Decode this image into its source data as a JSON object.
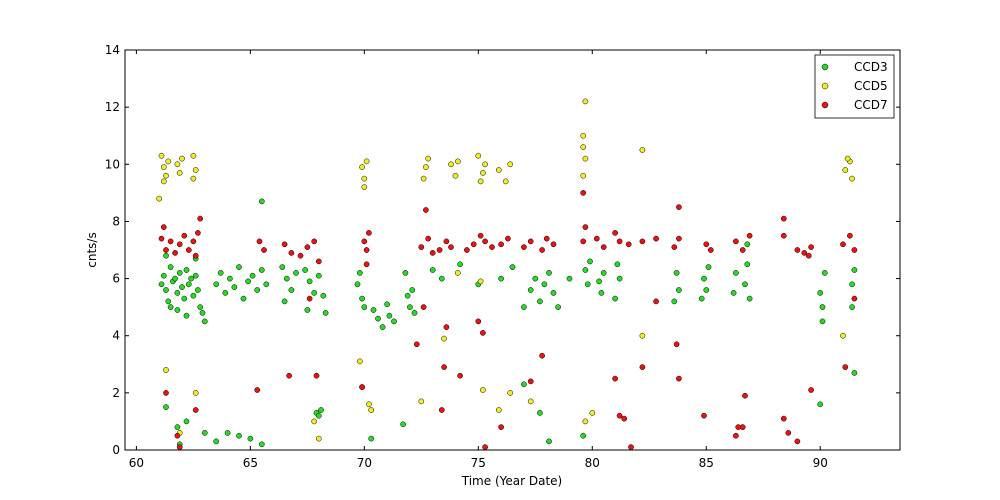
{
  "chart_data": {
    "type": "scatter",
    "xlabel": "Time (Year Date)",
    "ylabel": "cnts/s",
    "xlim": [
      59.5,
      93.5
    ],
    "ylim": [
      0,
      14
    ],
    "xticks": [
      60,
      65,
      70,
      75,
      80,
      85,
      90
    ],
    "yticks": [
      0,
      2,
      4,
      6,
      8,
      10,
      12,
      14
    ],
    "grid": false,
    "legend_position": "top-right",
    "series": [
      {
        "name": "CCD3",
        "color": "#22dd22",
        "points": [
          [
            61.1,
            5.8
          ],
          [
            61.2,
            6.1
          ],
          [
            61.3,
            5.6
          ],
          [
            61.4,
            5.2
          ],
          [
            61.5,
            6.4
          ],
          [
            61.6,
            5.9
          ],
          [
            61.7,
            6.0
          ],
          [
            61.8,
            5.5
          ],
          [
            61.9,
            6.2
          ],
          [
            62.0,
            5.7
          ],
          [
            62.1,
            5.3
          ],
          [
            62.2,
            6.3
          ],
          [
            62.3,
            5.8
          ],
          [
            62.4,
            6.0
          ],
          [
            62.5,
            5.4
          ],
          [
            62.6,
            6.1
          ],
          [
            62.7,
            5.6
          ],
          [
            62.8,
            5.0
          ],
          [
            62.9,
            4.8
          ],
          [
            63.0,
            4.5
          ],
          [
            61.5,
            5.0
          ],
          [
            61.8,
            4.9
          ],
          [
            62.2,
            4.7
          ],
          [
            61.3,
            6.8
          ],
          [
            62.6,
            6.7
          ],
          [
            63.5,
            5.8
          ],
          [
            63.7,
            6.2
          ],
          [
            63.9,
            5.5
          ],
          [
            64.1,
            6.0
          ],
          [
            64.3,
            5.7
          ],
          [
            64.5,
            6.4
          ],
          [
            64.7,
            5.3
          ],
          [
            64.9,
            5.9
          ],
          [
            65.1,
            6.1
          ],
          [
            65.3,
            5.6
          ],
          [
            65.5,
            6.3
          ],
          [
            65.7,
            5.8
          ],
          [
            65.5,
            8.7
          ],
          [
            66.4,
            6.4
          ],
          [
            66.6,
            6.0
          ],
          [
            66.8,
            5.6
          ],
          [
            67.0,
            6.2
          ],
          [
            66.5,
            5.2
          ],
          [
            67.4,
            6.3
          ],
          [
            67.6,
            5.9
          ],
          [
            67.8,
            5.5
          ],
          [
            68.0,
            6.1
          ],
          [
            68.2,
            5.4
          ],
          [
            68.3,
            4.8
          ],
          [
            67.5,
            4.9
          ],
          [
            69.7,
            5.8
          ],
          [
            69.9,
            5.3
          ],
          [
            69.8,
            6.2
          ],
          [
            70.0,
            5.0
          ],
          [
            70.4,
            4.9
          ],
          [
            70.6,
            4.6
          ],
          [
            70.8,
            4.3
          ],
          [
            71.0,
            5.1
          ],
          [
            71.1,
            4.7
          ],
          [
            71.3,
            4.5
          ],
          [
            71.9,
            5.4
          ],
          [
            72.0,
            5.0
          ],
          [
            72.1,
            5.6
          ],
          [
            72.2,
            4.8
          ],
          [
            71.8,
            6.2
          ],
          [
            73.0,
            6.3
          ],
          [
            73.4,
            6.0
          ],
          [
            74.2,
            6.5
          ],
          [
            75.0,
            5.8
          ],
          [
            76.0,
            6.0
          ],
          [
            76.5,
            6.4
          ],
          [
            77.3,
            5.6
          ],
          [
            77.5,
            6.0
          ],
          [
            77.7,
            5.2
          ],
          [
            77.9,
            5.8
          ],
          [
            78.1,
            6.2
          ],
          [
            78.3,
            5.5
          ],
          [
            78.5,
            5.0
          ],
          [
            77.0,
            5.0
          ],
          [
            79.0,
            6.0
          ],
          [
            79.7,
            6.3
          ],
          [
            79.8,
            5.8
          ],
          [
            79.9,
            6.6
          ],
          [
            80.3,
            5.9
          ],
          [
            80.5,
            6.2
          ],
          [
            80.4,
            5.5
          ],
          [
            81.1,
            6.5
          ],
          [
            81.2,
            6.0
          ],
          [
            81.0,
            5.3
          ],
          [
            83.7,
            6.2
          ],
          [
            83.8,
            5.6
          ],
          [
            83.6,
            5.2
          ],
          [
            84.9,
            6.0
          ],
          [
            85.0,
            5.6
          ],
          [
            85.1,
            6.4
          ],
          [
            84.8,
            5.3
          ],
          [
            86.3,
            6.2
          ],
          [
            86.2,
            5.5
          ],
          [
            86.7,
            5.8
          ],
          [
            86.8,
            6.5
          ],
          [
            86.9,
            5.3
          ],
          [
            86.8,
            7.2
          ],
          [
            90.0,
            5.5
          ],
          [
            90.1,
            5.0
          ],
          [
            90.2,
            6.2
          ],
          [
            90.1,
            4.5
          ],
          [
            91.4,
            5.8
          ],
          [
            91.5,
            6.3
          ],
          [
            91.4,
            5.0
          ],
          [
            91.5,
            2.7
          ],
          [
            61.3,
            1.5
          ],
          [
            61.8,
            0.8
          ],
          [
            61.9,
            0.2
          ],
          [
            62.2,
            1.0
          ],
          [
            63.0,
            0.6
          ],
          [
            63.5,
            0.3
          ],
          [
            64.0,
            0.6
          ],
          [
            64.5,
            0.5
          ],
          [
            65.0,
            0.4
          ],
          [
            65.5,
            0.2
          ],
          [
            67.9,
            1.3
          ],
          [
            68.0,
            1.2
          ],
          [
            68.1,
            1.4
          ],
          [
            70.3,
            0.4
          ],
          [
            71.7,
            0.9
          ],
          [
            77.0,
            2.3
          ],
          [
            77.7,
            1.3
          ],
          [
            78.1,
            0.3
          ],
          [
            79.6,
            0.5
          ],
          [
            90.0,
            1.6
          ]
        ]
      },
      {
        "name": "CCD5",
        "color": "#eeee22",
        "points": [
          [
            61.1,
            10.3
          ],
          [
            61.2,
            9.9
          ],
          [
            61.3,
            9.6
          ],
          [
            61.4,
            10.1
          ],
          [
            61.0,
            8.8
          ],
          [
            61.2,
            9.4
          ],
          [
            61.8,
            10.0
          ],
          [
            61.9,
            9.7
          ],
          [
            62.0,
            10.2
          ],
          [
            62.5,
            10.3
          ],
          [
            62.6,
            9.8
          ],
          [
            62.5,
            9.5
          ],
          [
            69.9,
            9.9
          ],
          [
            70.0,
            9.5
          ],
          [
            70.1,
            10.1
          ],
          [
            70.0,
            9.2
          ],
          [
            72.7,
            9.9
          ],
          [
            72.8,
            10.2
          ],
          [
            72.6,
            9.5
          ],
          [
            73.8,
            10.0
          ],
          [
            74.0,
            9.6
          ],
          [
            74.1,
            10.1
          ],
          [
            75.0,
            10.3
          ],
          [
            75.2,
            9.7
          ],
          [
            75.3,
            10.0
          ],
          [
            75.1,
            9.4
          ],
          [
            75.9,
            9.8
          ],
          [
            76.2,
            9.4
          ],
          [
            76.4,
            10.0
          ],
          [
            79.6,
            10.6
          ],
          [
            79.7,
            10.2
          ],
          [
            79.6,
            11.0
          ],
          [
            79.7,
            12.2
          ],
          [
            79.6,
            9.6
          ],
          [
            82.2,
            10.5
          ],
          [
            91.1,
            9.8
          ],
          [
            91.3,
            10.1
          ],
          [
            91.4,
            9.5
          ],
          [
            91.2,
            10.2
          ],
          [
            61.3,
            2.8
          ],
          [
            61.9,
            0.6
          ],
          [
            62.6,
            2.0
          ],
          [
            67.8,
            1.0
          ],
          [
            68.0,
            0.4
          ],
          [
            69.8,
            3.1
          ],
          [
            69.9,
            2.2
          ],
          [
            70.2,
            1.6
          ],
          [
            70.3,
            1.4
          ],
          [
            72.5,
            1.7
          ],
          [
            73.5,
            3.9
          ],
          [
            74.1,
            6.2
          ],
          [
            75.1,
            5.9
          ],
          [
            75.2,
            2.1
          ],
          [
            75.9,
            1.4
          ],
          [
            76.4,
            2.0
          ],
          [
            77.3,
            1.7
          ],
          [
            79.7,
            1.0
          ],
          [
            82.2,
            4.0
          ],
          [
            91.0,
            4.0
          ],
          [
            80.0,
            1.3
          ]
        ]
      },
      {
        "name": "CCD7",
        "color": "#ee1111",
        "points": [
          [
            61.1,
            7.4
          ],
          [
            61.3,
            7.0
          ],
          [
            61.5,
            7.3
          ],
          [
            61.7,
            6.9
          ],
          [
            61.9,
            7.2
          ],
          [
            62.1,
            7.5
          ],
          [
            62.3,
            7.0
          ],
          [
            62.5,
            7.3
          ],
          [
            62.7,
            7.6
          ],
          [
            62.6,
            6.8
          ],
          [
            61.2,
            7.8
          ],
          [
            62.8,
            8.1
          ],
          [
            65.4,
            7.3
          ],
          [
            65.6,
            7.0
          ],
          [
            66.5,
            7.2
          ],
          [
            66.8,
            6.9
          ],
          [
            67.2,
            6.8
          ],
          [
            67.5,
            7.1
          ],
          [
            67.8,
            7.3
          ],
          [
            68.0,
            6.6
          ],
          [
            70.0,
            7.3
          ],
          [
            70.2,
            7.6
          ],
          [
            70.1,
            7.0
          ],
          [
            72.5,
            7.1
          ],
          [
            72.8,
            7.4
          ],
          [
            73.0,
            6.9
          ],
          [
            73.3,
            7.0
          ],
          [
            73.6,
            7.3
          ],
          [
            73.8,
            7.1
          ],
          [
            72.7,
            8.4
          ],
          [
            74.5,
            7.0
          ],
          [
            74.8,
            7.2
          ],
          [
            75.1,
            7.5
          ],
          [
            75.3,
            7.3
          ],
          [
            75.6,
            7.1
          ],
          [
            76.0,
            7.2
          ],
          [
            76.3,
            7.4
          ],
          [
            77.0,
            7.1
          ],
          [
            77.3,
            7.3
          ],
          [
            77.8,
            7.0
          ],
          [
            78.0,
            7.4
          ],
          [
            78.3,
            7.2
          ],
          [
            79.6,
            7.3
          ],
          [
            79.7,
            7.8
          ],
          [
            79.6,
            9.0
          ],
          [
            80.2,
            7.4
          ],
          [
            80.5,
            7.1
          ],
          [
            81.0,
            7.6
          ],
          [
            81.2,
            7.3
          ],
          [
            81.6,
            7.2
          ],
          [
            82.2,
            7.3
          ],
          [
            82.8,
            7.4
          ],
          [
            83.6,
            7.1
          ],
          [
            83.8,
            7.4
          ],
          [
            85.0,
            7.2
          ],
          [
            85.2,
            7.0
          ],
          [
            86.3,
            7.3
          ],
          [
            86.6,
            7.0
          ],
          [
            86.9,
            7.5
          ],
          [
            88.4,
            7.5
          ],
          [
            89.0,
            7.0
          ],
          [
            89.3,
            6.9
          ],
          [
            89.6,
            7.1
          ],
          [
            91.0,
            7.2
          ],
          [
            91.3,
            7.5
          ],
          [
            91.5,
            7.0
          ],
          [
            83.8,
            8.5
          ],
          [
            83.7,
            3.7
          ],
          [
            88.4,
            8.1
          ],
          [
            91.5,
            5.3
          ],
          [
            61.3,
            2.0
          ],
          [
            61.8,
            0.5
          ],
          [
            61.9,
            0.1
          ],
          [
            62.6,
            1.4
          ],
          [
            65.3,
            2.1
          ],
          [
            66.7,
            2.6
          ],
          [
            67.6,
            5.3
          ],
          [
            67.9,
            2.6
          ],
          [
            69.9,
            2.2
          ],
          [
            70.1,
            6.5
          ],
          [
            72.3,
            3.7
          ],
          [
            72.6,
            5.0
          ],
          [
            73.4,
            1.4
          ],
          [
            73.5,
            2.9
          ],
          [
            73.6,
            4.3
          ],
          [
            74.2,
            2.6
          ],
          [
            75.0,
            4.5
          ],
          [
            75.2,
            4.1
          ],
          [
            75.3,
            0.1
          ],
          [
            76.0,
            0.8
          ],
          [
            77.3,
            2.4
          ],
          [
            77.8,
            3.3
          ],
          [
            81.0,
            2.5
          ],
          [
            81.2,
            1.2
          ],
          [
            81.4,
            1.1
          ],
          [
            81.7,
            0.1
          ],
          [
            82.2,
            2.9
          ],
          [
            82.8,
            5.2
          ],
          [
            83.8,
            2.5
          ],
          [
            84.9,
            1.2
          ],
          [
            86.3,
            0.5
          ],
          [
            86.4,
            0.8
          ],
          [
            86.6,
            0.8
          ],
          [
            86.7,
            1.9
          ],
          [
            88.4,
            1.1
          ],
          [
            88.6,
            0.6
          ],
          [
            89.0,
            0.3
          ],
          [
            89.6,
            2.1
          ],
          [
            91.1,
            2.9
          ],
          [
            89.5,
            6.8
          ]
        ]
      }
    ]
  }
}
